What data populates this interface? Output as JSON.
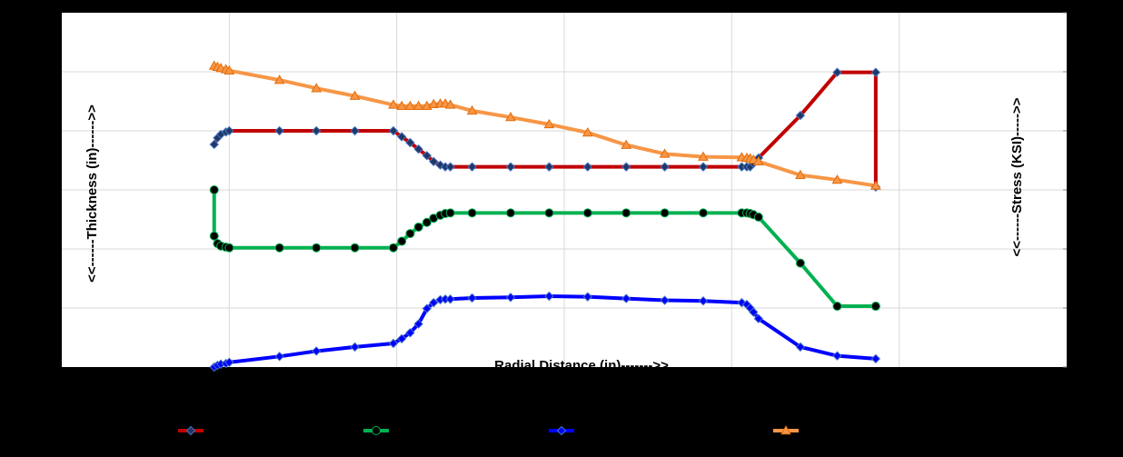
{
  "chart_data": {
    "type": "line",
    "title": "",
    "xlabel": "Radial Distance (in)------->>",
    "ylabel_left": "<<------Thickness (in)------>>",
    "ylabel_right": "<<------Stress (KSI)----->>",
    "xlim": [
      0,
      6
    ],
    "ylim": [
      0,
      6
    ],
    "x_gridlines": [
      1,
      2,
      3,
      4,
      5
    ],
    "y_gridlines": [
      1,
      2,
      3,
      4,
      5
    ],
    "grid": true,
    "legend_position": "bottom",
    "colors": {
      "background": "#000000",
      "plot_area": "#ffffff",
      "grid": "#d9d9d9"
    },
    "series": [
      {
        "name": "",
        "color": "#c00000",
        "marker": "diamond",
        "marker_fill": "#1f3864",
        "x": [
          0.91,
          0.93,
          0.95,
          0.98,
          1.0,
          1.3,
          1.52,
          1.75,
          1.98,
          2.03,
          2.08,
          2.13,
          2.18,
          2.22,
          2.26,
          2.29,
          2.32,
          2.45,
          2.68,
          2.91,
          3.14,
          3.37,
          3.6,
          3.83,
          4.06,
          4.09,
          4.11,
          4.13,
          4.16,
          4.41,
          4.63,
          4.86,
          4.86
        ],
        "y": [
          3.77,
          3.88,
          3.94,
          3.98,
          4.0,
          4.0,
          4.0,
          4.0,
          4.0,
          3.9,
          3.8,
          3.69,
          3.58,
          3.48,
          3.42,
          3.39,
          3.39,
          3.39,
          3.39,
          3.39,
          3.39,
          3.39,
          3.39,
          3.39,
          3.39,
          3.39,
          3.39,
          3.45,
          3.54,
          4.26,
          4.99,
          4.99,
          3.05
        ]
      },
      {
        "name": "",
        "color": "#00b050",
        "marker": "circle",
        "marker_fill": "#000000",
        "x": [
          0.91,
          0.91,
          0.93,
          0.95,
          0.98,
          1.0,
          1.3,
          1.52,
          1.75,
          1.98,
          2.03,
          2.08,
          2.13,
          2.18,
          2.22,
          2.26,
          2.29,
          2.32,
          2.45,
          2.68,
          2.91,
          3.14,
          3.37,
          3.6,
          3.83,
          4.06,
          4.09,
          4.11,
          4.13,
          4.16,
          4.41,
          4.63,
          4.86,
          4.86
        ],
        "y": [
          3.0,
          2.22,
          2.09,
          2.05,
          2.03,
          2.02,
          2.02,
          2.02,
          2.02,
          2.02,
          2.13,
          2.26,
          2.37,
          2.45,
          2.52,
          2.57,
          2.6,
          2.61,
          2.61,
          2.61,
          2.61,
          2.61,
          2.61,
          2.61,
          2.61,
          2.61,
          2.61,
          2.6,
          2.58,
          2.54,
          1.76,
          1.03,
          1.03,
          1.03
        ]
      },
      {
        "name": "",
        "color": "#0000ff",
        "marker": "diamond",
        "marker_fill": "#0000ff",
        "x": [
          0.91,
          0.93,
          0.95,
          0.98,
          1.0,
          1.3,
          1.52,
          1.75,
          1.98,
          2.03,
          2.08,
          2.13,
          2.18,
          2.22,
          2.26,
          2.29,
          2.32,
          2.45,
          2.68,
          2.91,
          3.14,
          3.37,
          3.6,
          3.83,
          4.06,
          4.09,
          4.11,
          4.13,
          4.16,
          4.41,
          4.63,
          4.86
        ],
        "y": [
          0.0,
          0.03,
          0.05,
          0.06,
          0.08,
          0.18,
          0.27,
          0.34,
          0.4,
          0.48,
          0.58,
          0.73,
          0.99,
          1.09,
          1.14,
          1.15,
          1.15,
          1.17,
          1.18,
          1.2,
          1.19,
          1.16,
          1.13,
          1.12,
          1.09,
          1.06,
          1.0,
          0.93,
          0.82,
          0.34,
          0.19,
          0.14
        ]
      },
      {
        "name": "",
        "color": "#f79646",
        "marker": "triangle",
        "marker_fill": "#f79646",
        "x": [
          0.91,
          0.93,
          0.95,
          0.98,
          1.0,
          1.3,
          1.52,
          1.75,
          1.98,
          2.03,
          2.08,
          2.13,
          2.18,
          2.22,
          2.26,
          2.29,
          2.32,
          2.45,
          2.68,
          2.91,
          3.14,
          3.37,
          3.6,
          3.83,
          4.06,
          4.09,
          4.11,
          4.13,
          4.16,
          4.41,
          4.63,
          4.86
        ],
        "y": [
          5.1,
          5.08,
          5.06,
          5.04,
          5.02,
          4.86,
          4.72,
          4.59,
          4.44,
          4.42,
          4.42,
          4.42,
          4.42,
          4.45,
          4.46,
          4.46,
          4.44,
          4.34,
          4.23,
          4.11,
          3.97,
          3.76,
          3.61,
          3.56,
          3.55,
          3.54,
          3.53,
          3.51,
          3.48,
          3.25,
          3.17,
          3.07
        ]
      }
    ]
  }
}
